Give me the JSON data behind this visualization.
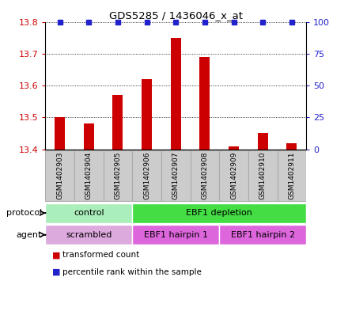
{
  "title": "GDS5285 / 1436046_x_at",
  "samples": [
    "GSM1402903",
    "GSM1402904",
    "GSM1402905",
    "GSM1402906",
    "GSM1402907",
    "GSM1402908",
    "GSM1402909",
    "GSM1402910",
    "GSM1402911"
  ],
  "transformed_counts": [
    13.5,
    13.48,
    13.57,
    13.62,
    13.75,
    13.69,
    13.41,
    13.45,
    13.42
  ],
  "percentile_ranks": [
    100,
    100,
    100,
    100,
    100,
    100,
    100,
    100,
    100
  ],
  "ylim_left": [
    13.4,
    13.8
  ],
  "ylim_right": [
    0,
    100
  ],
  "yticks_left": [
    13.4,
    13.5,
    13.6,
    13.7,
    13.8
  ],
  "yticks_right": [
    0,
    25,
    50,
    75,
    100
  ],
  "bar_color": "#cc0000",
  "dot_color": "#2222cc",
  "protocol_groups": [
    {
      "label": "control",
      "start": 0,
      "end": 3,
      "color": "#aaeebb"
    },
    {
      "label": "EBF1 depletion",
      "start": 3,
      "end": 9,
      "color": "#44dd44"
    }
  ],
  "agent_groups": [
    {
      "label": "scrambled",
      "start": 0,
      "end": 3,
      "color": "#ddaadd"
    },
    {
      "label": "EBF1 hairpin 1",
      "start": 3,
      "end": 6,
      "color": "#dd66dd"
    },
    {
      "label": "EBF1 hairpin 2",
      "start": 6,
      "end": 9,
      "color": "#dd66dd"
    }
  ],
  "legend_items": [
    {
      "label": "transformed count",
      "color": "#cc0000"
    },
    {
      "label": "percentile rank within the sample",
      "color": "#2222cc"
    }
  ],
  "bg_color": "#ffffff",
  "label_color_left": "#cc0000",
  "label_color_right": "#2222cc",
  "sample_box_color": "#cccccc",
  "sample_box_edge": "#aaaaaa"
}
